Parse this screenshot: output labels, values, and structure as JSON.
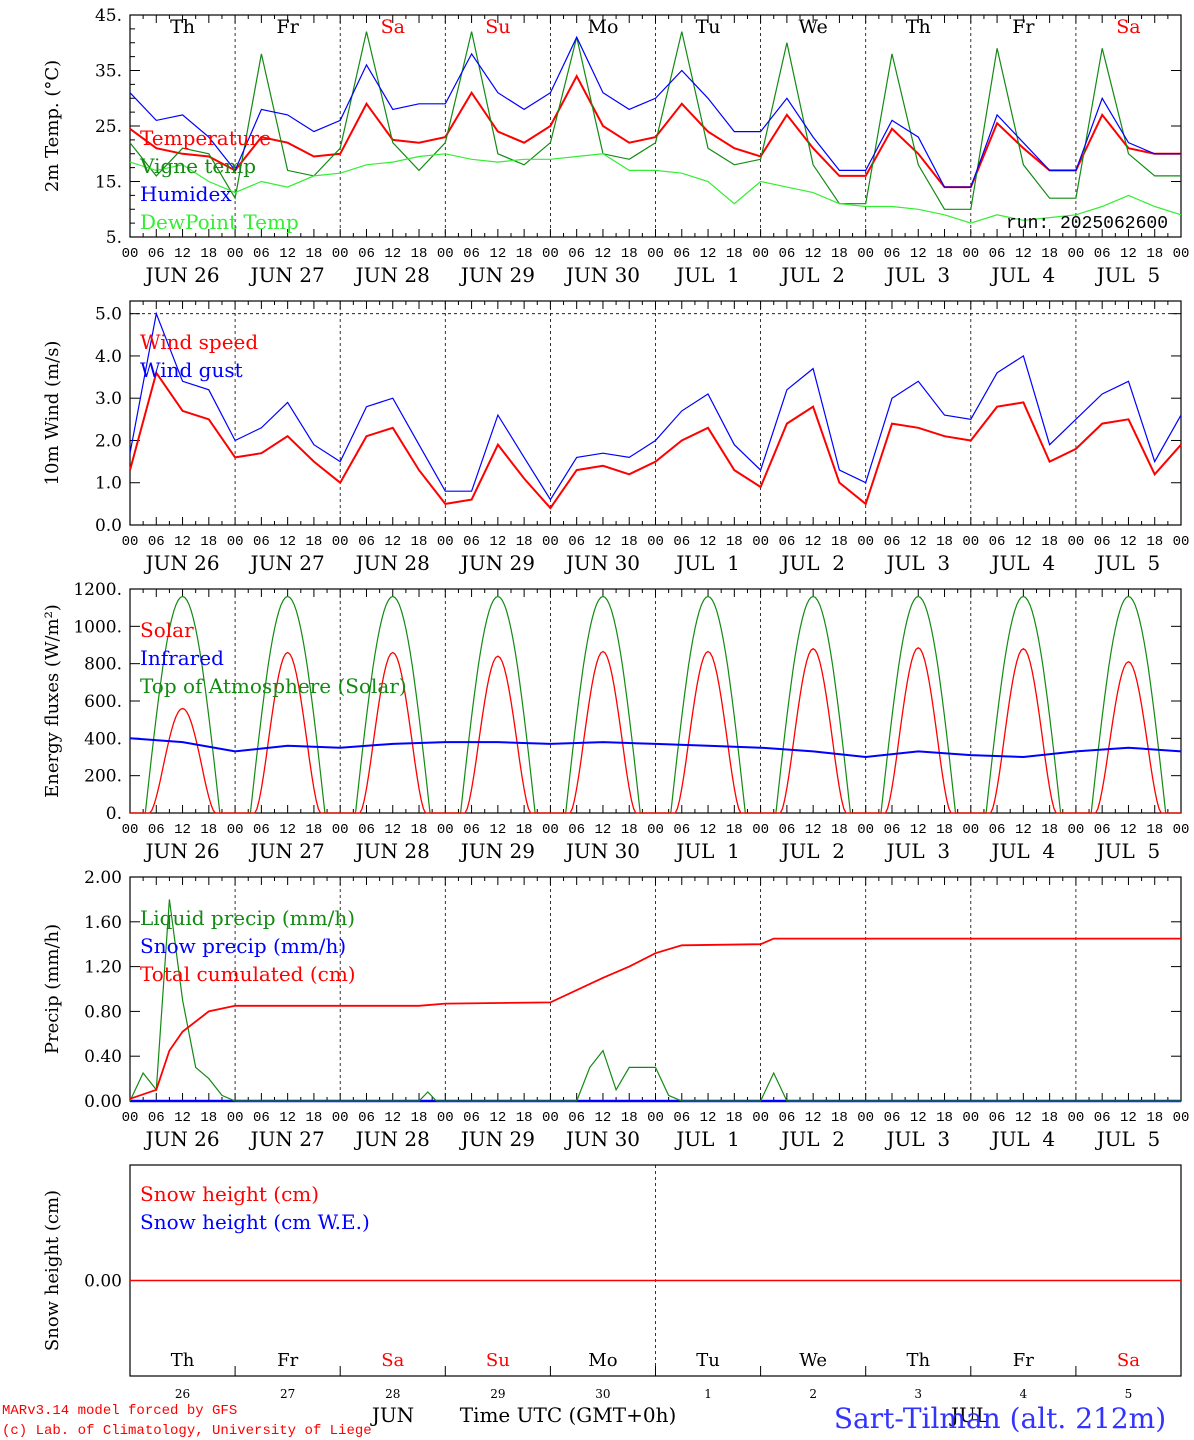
{
  "footer": {
    "credit_line1": "MARv3.14 model forced by GFS",
    "credit_line2": "(c) Lab. of Climatology, University of Liege",
    "xlabel": "Time UTC (GMT+0h)",
    "month_label": "JUN",
    "station": "Sart-Tilman (alt. 212m)"
  },
  "colors": {
    "red": "#ff0000",
    "green": "#138a13",
    "blue": "#0000ff",
    "lightgreen": "#33ee33"
  },
  "chart_data": [
    {
      "type": "line",
      "ylabel": "2m Temp. (°C)",
      "ylim": [
        5,
        45
      ],
      "yticks": [
        "45.",
        "35.",
        "25.",
        "15.",
        "5."
      ],
      "ytick_values": [
        45,
        35,
        25,
        15,
        5
      ],
      "day_names": [
        "Th",
        "Fr",
        "Sa",
        "Su",
        "Mo",
        "Tu",
        "We",
        "Th",
        "Fr",
        "Sa"
      ],
      "weekend_flags": [
        false,
        false,
        true,
        true,
        false,
        false,
        false,
        false,
        false,
        true
      ],
      "date_labels": [
        "JUN 26",
        "JUN 27",
        "JUN 28",
        "JUN 29",
        "JUN 30",
        "JUL  1",
        "JUL  2",
        "JUL  3",
        "JUL  4",
        "JUL  5"
      ],
      "hour_ticks": [
        "00",
        "06",
        "12",
        "18"
      ],
      "annotation": "run: 2025062600",
      "x_hours": [
        0,
        6,
        12,
        18,
        24,
        30,
        36,
        42,
        48,
        54,
        60,
        66,
        72,
        78,
        84,
        90,
        96,
        102,
        108,
        114,
        120,
        126,
        132,
        138,
        144,
        150,
        156,
        162,
        168,
        174,
        180,
        186,
        192,
        198,
        204,
        210,
        216,
        222,
        228,
        234,
        240
      ],
      "series": [
        {
          "name": "Temperature",
          "color": "#ff0000",
          "values": [
            24.5,
            21,
            20,
            19.5,
            17,
            23,
            22,
            19.5,
            20,
            29,
            22.5,
            22,
            23,
            31,
            24,
            22,
            25,
            34,
            25,
            22,
            23,
            29,
            24,
            21,
            19.5,
            27,
            21,
            16,
            16,
            24.5,
            20,
            14,
            14,
            25.5,
            21,
            17,
            17,
            27,
            21,
            20,
            20
          ]
        },
        {
          "name": "Vigne temp",
          "color": "#138a13",
          "values": [
            22,
            16,
            21,
            20,
            12,
            38,
            17,
            16,
            21,
            42,
            22,
            17,
            22,
            42,
            20,
            18,
            22,
            41,
            20,
            19,
            22,
            42,
            21,
            18,
            19,
            40,
            18,
            11,
            11,
            38,
            18,
            10,
            10,
            39,
            18,
            12,
            12,
            39,
            20,
            16,
            16
          ]
        },
        {
          "name": "Humidex",
          "color": "#0000ff",
          "values": [
            31,
            26,
            27,
            23,
            17,
            28,
            27,
            24,
            26,
            36,
            28,
            29,
            29,
            38,
            31,
            28,
            31,
            41,
            31,
            28,
            30,
            35,
            30,
            24,
            24,
            30,
            23,
            17,
            17,
            26,
            23,
            14,
            14,
            27,
            22,
            17,
            17,
            30,
            22,
            20,
            20
          ]
        },
        {
          "name": "DewPoint Temp",
          "color": "#33ee33",
          "values": [
            18.5,
            17,
            18,
            15,
            13,
            15,
            14,
            16,
            16.5,
            18,
            18.5,
            19.5,
            20,
            19,
            18.5,
            19,
            19,
            19.5,
            20,
            17,
            17,
            16.5,
            15,
            11,
            15,
            14,
            13,
            11,
            10.5,
            10.5,
            10,
            9,
            7.5,
            9,
            8,
            8.5,
            9,
            10.5,
            12.5,
            10.5,
            9
          ]
        }
      ]
    },
    {
      "type": "line",
      "ylabel": "10m Wind (m/s)",
      "ylim": [
        0,
        5.3
      ],
      "yticks": [
        "5.0",
        "4.0",
        "3.0",
        "2.0",
        "1.0",
        "0.0"
      ],
      "ytick_values": [
        5,
        4,
        3,
        2,
        1,
        0
      ],
      "dashed_line": 5.0,
      "date_labels": [
        "JUN 26",
        "JUN 27",
        "JUN 28",
        "JUN 29",
        "JUN 30",
        "JUL  1",
        "JUL  2",
        "JUL  3",
        "JUL  4",
        "JUL  5"
      ],
      "hour_ticks": [
        "00",
        "06",
        "12",
        "18"
      ],
      "x_hours": [
        0,
        6,
        12,
        18,
        24,
        30,
        36,
        42,
        48,
        54,
        60,
        66,
        72,
        78,
        84,
        90,
        96,
        102,
        108,
        114,
        120,
        126,
        132,
        138,
        144,
        150,
        156,
        162,
        168,
        174,
        180,
        186,
        192,
        198,
        204,
        210,
        216,
        222,
        228,
        234,
        240
      ],
      "series": [
        {
          "name": "Wind speed",
          "color": "#ff0000",
          "values": [
            1.3,
            3.6,
            2.7,
            2.5,
            1.6,
            1.7,
            2.1,
            1.5,
            1.0,
            2.1,
            2.3,
            1.3,
            0.5,
            0.6,
            1.9,
            1.1,
            0.4,
            1.3,
            1.4,
            1.2,
            1.5,
            2.0,
            2.3,
            1.3,
            0.9,
            2.4,
            2.8,
            1.0,
            0.5,
            2.4,
            2.3,
            2.1,
            2.0,
            2.8,
            2.9,
            1.5,
            1.8,
            2.4,
            2.5,
            1.2,
            1.9
          ]
        },
        {
          "name": "Wind gust",
          "color": "#0000ff",
          "values": [
            1.7,
            5.0,
            3.4,
            3.2,
            2.0,
            2.3,
            2.9,
            1.9,
            1.5,
            2.8,
            3.0,
            1.9,
            0.8,
            0.8,
            2.6,
            1.6,
            0.6,
            1.6,
            1.7,
            1.6,
            2.0,
            2.7,
            3.1,
            1.9,
            1.3,
            3.2,
            3.7,
            1.3,
            1.0,
            3.0,
            3.4,
            2.6,
            2.5,
            3.6,
            4.0,
            1.9,
            2.5,
            3.1,
            3.4,
            1.5,
            2.6
          ]
        }
      ]
    },
    {
      "type": "line",
      "ylabel": "Energy fluxes (W/m²)",
      "ylim": [
        0,
        1200
      ],
      "yticks": [
        "1200.",
        "1000.",
        "800.",
        "600.",
        "400.",
        "200.",
        "0."
      ],
      "ytick_values": [
        1200,
        1000,
        800,
        600,
        400,
        200,
        0
      ],
      "date_labels": [
        "JUN 26",
        "JUN 27",
        "JUN 28",
        "JUN 29",
        "JUN 30",
        "JUL  1",
        "JUL  2",
        "JUL  3",
        "JUL  4",
        "JUL  5"
      ],
      "hour_ticks": [
        "00",
        "06",
        "12",
        "18"
      ],
      "solar_noon_peaks_toa": 1160,
      "series": [
        {
          "name": "Solar",
          "color": "#ff0000",
          "daily_peak": [
            560,
            860,
            860,
            840,
            865,
            865,
            880,
            885,
            880,
            810
          ]
        },
        {
          "name": "Infrared",
          "color": "#0000ff",
          "x_hours": [
            0,
            12,
            24,
            36,
            48,
            60,
            72,
            84,
            96,
            108,
            120,
            132,
            144,
            156,
            168,
            180,
            192,
            204,
            216,
            228,
            240
          ],
          "values": [
            400,
            380,
            330,
            360,
            350,
            370,
            380,
            380,
            370,
            380,
            370,
            360,
            350,
            330,
            300,
            330,
            310,
            300,
            330,
            350,
            330
          ]
        },
        {
          "name": "Top of Atmosphere (Solar)",
          "color": "#138a13",
          "daily_peak": [
            1160,
            1160,
            1160,
            1160,
            1160,
            1160,
            1160,
            1160,
            1160,
            1160
          ]
        }
      ]
    },
    {
      "type": "line",
      "ylabel": "Precip (mm/h)",
      "ylim": [
        0,
        2.0
      ],
      "yticks": [
        "2.00",
        "1.60",
        "1.20",
        "0.80",
        "0.40",
        "0.00"
      ],
      "ytick_values": [
        2.0,
        1.6,
        1.2,
        0.8,
        0.4,
        0.0
      ],
      "date_labels": [
        "JUN 26",
        "JUN 27",
        "JUN 28",
        "JUN 29",
        "JUN 30",
        "JUL  1",
        "JUL  2",
        "JUL  3",
        "JUL  4",
        "JUL  5"
      ],
      "hour_ticks": [
        "00",
        "06",
        "12",
        "18"
      ],
      "series": [
        {
          "name": "Liquid precip (mm/h)",
          "color": "#138a13",
          "x_hours": [
            0,
            3,
            6,
            9,
            12,
            15,
            18,
            21,
            24,
            66,
            68,
            70,
            72,
            102,
            105,
            108,
            111,
            114,
            117,
            120,
            123,
            126,
            144,
            147,
            150,
            153,
            240
          ],
          "values": [
            0,
            0.25,
            0.1,
            1.8,
            0.9,
            0.3,
            0.2,
            0.05,
            0,
            0,
            0.08,
            0,
            0,
            0,
            0.3,
            0.45,
            0.1,
            0.3,
            0.3,
            0.3,
            0.05,
            0,
            0,
            0.25,
            0,
            0,
            0
          ]
        },
        {
          "name": "Snow precip (mm/h)",
          "color": "#0000ff",
          "x_hours": [
            0,
            240
          ],
          "values": [
            0,
            0
          ]
        },
        {
          "name": "Total cumulated (cm)",
          "color": "#ff0000",
          "x_hours": [
            0,
            6,
            9,
            12,
            18,
            24,
            66,
            72,
            96,
            108,
            114,
            120,
            126,
            144,
            147,
            150,
            240
          ],
          "values": [
            0.02,
            0.1,
            0.45,
            0.62,
            0.8,
            0.85,
            0.85,
            0.87,
            0.88,
            1.1,
            1.2,
            1.32,
            1.39,
            1.4,
            1.45,
            1.45,
            1.45
          ]
        }
      ]
    },
    {
      "type": "line",
      "ylabel": "Snow height (cm)",
      "yticks": [
        "0.00"
      ],
      "ytick_values": [
        0
      ],
      "series": [
        {
          "name": "Snow height (cm)",
          "color": "#ff0000",
          "values": [
            0,
            0
          ]
        },
        {
          "name": "Snow height (cm W.E.)",
          "color": "#0000ff",
          "values": [
            0,
            0
          ]
        }
      ],
      "bottom_day_names": [
        "Th",
        "Fr",
        "Sa",
        "Su",
        "Mo",
        "Tu",
        "We",
        "Th",
        "Fr",
        "Sa"
      ],
      "bottom_day_numbers": [
        "26",
        "27",
        "28",
        "29",
        "30",
        "1",
        "2",
        "3",
        "4",
        "5"
      ],
      "bottom_month_labels": [
        "JUN",
        "JUL"
      ]
    }
  ]
}
